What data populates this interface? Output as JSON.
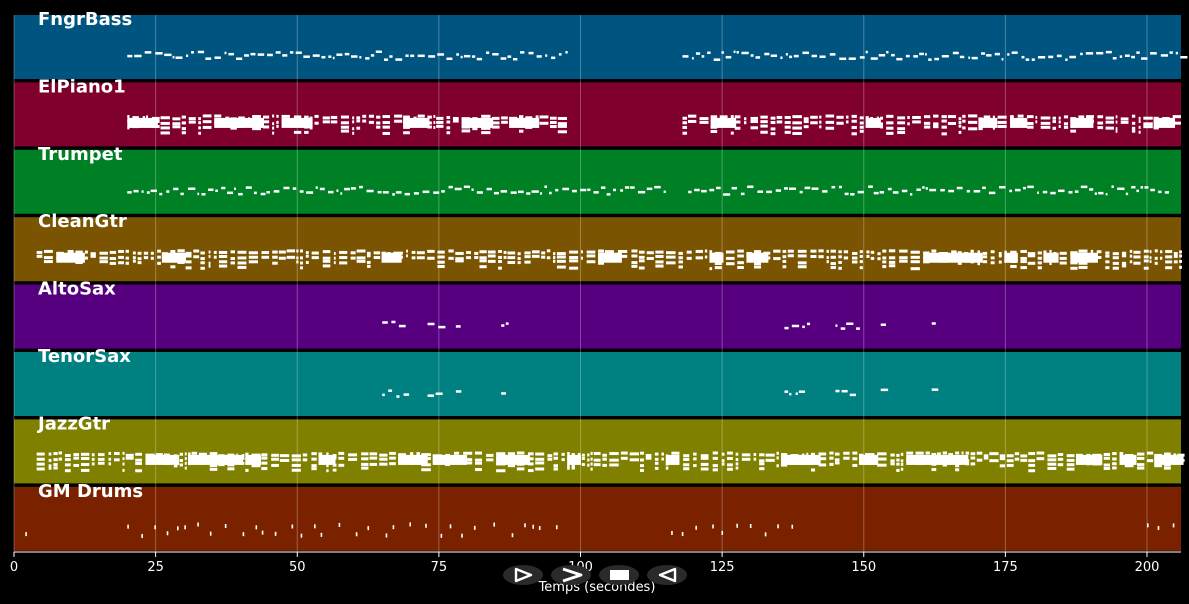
{
  "chart_data": {
    "type": "piano-roll",
    "xlabel": "Temps (secondes)",
    "xlim": [
      0,
      206
    ],
    "xticks": [
      0,
      25,
      50,
      75,
      100,
      125,
      150,
      175,
      200
    ],
    "grid": true,
    "tracks": [
      {
        "name": "FngrBass",
        "color": "#005580",
        "segments": [
          [
            20,
            98
          ],
          [
            118,
            206
          ]
        ],
        "style": "line",
        "pitch_rows": 2
      },
      {
        "name": "ElPiano1",
        "color": "#7f002d",
        "segments": [
          [
            20,
            98
          ],
          [
            118,
            206
          ]
        ],
        "style": "chords",
        "pitch_rows": 3
      },
      {
        "name": "Trumpet",
        "color": "#008025",
        "segments": [
          [
            20,
            115
          ],
          [
            119,
            204
          ]
        ],
        "style": "line",
        "pitch_rows": 2
      },
      {
        "name": "CleanGtr",
        "color": "#7a5400",
        "segments": [
          [
            4,
            206
          ]
        ],
        "style": "chords",
        "pitch_rows": 3
      },
      {
        "name": "AltoSax",
        "color": "#560080",
        "segments": [
          [
            65,
            69
          ],
          [
            73,
            75
          ],
          [
            78,
            79
          ],
          [
            86,
            87
          ],
          [
            136,
            140
          ],
          [
            145,
            149
          ],
          [
            153,
            154
          ],
          [
            162,
            163
          ]
        ],
        "style": "line",
        "pitch_rows": 1
      },
      {
        "name": "TenorSax",
        "color": "#008080",
        "segments": [
          [
            65,
            69
          ],
          [
            73,
            75
          ],
          [
            78,
            79
          ],
          [
            86,
            87
          ],
          [
            136,
            140
          ],
          [
            145,
            149
          ],
          [
            153,
            154
          ],
          [
            162,
            163
          ]
        ],
        "style": "line",
        "pitch_rows": 1
      },
      {
        "name": "JazzGtr",
        "color": "#808000",
        "segments": [
          [
            4,
            206
          ]
        ],
        "style": "chords",
        "pitch_rows": 3
      },
      {
        "name": "GM Drums",
        "color": "#7a2200",
        "segments": [
          [
            2,
            4
          ],
          [
            20,
            97
          ],
          [
            116,
            140
          ],
          [
            200,
            205
          ]
        ],
        "style": "hits",
        "pitch_rows": 2
      }
    ]
  },
  "controls": {
    "play_icon": "play-outline-icon",
    "next_icon": "chevron-right-icon",
    "stop_icon": "stop-icon",
    "back_icon": "rewind-icon"
  }
}
